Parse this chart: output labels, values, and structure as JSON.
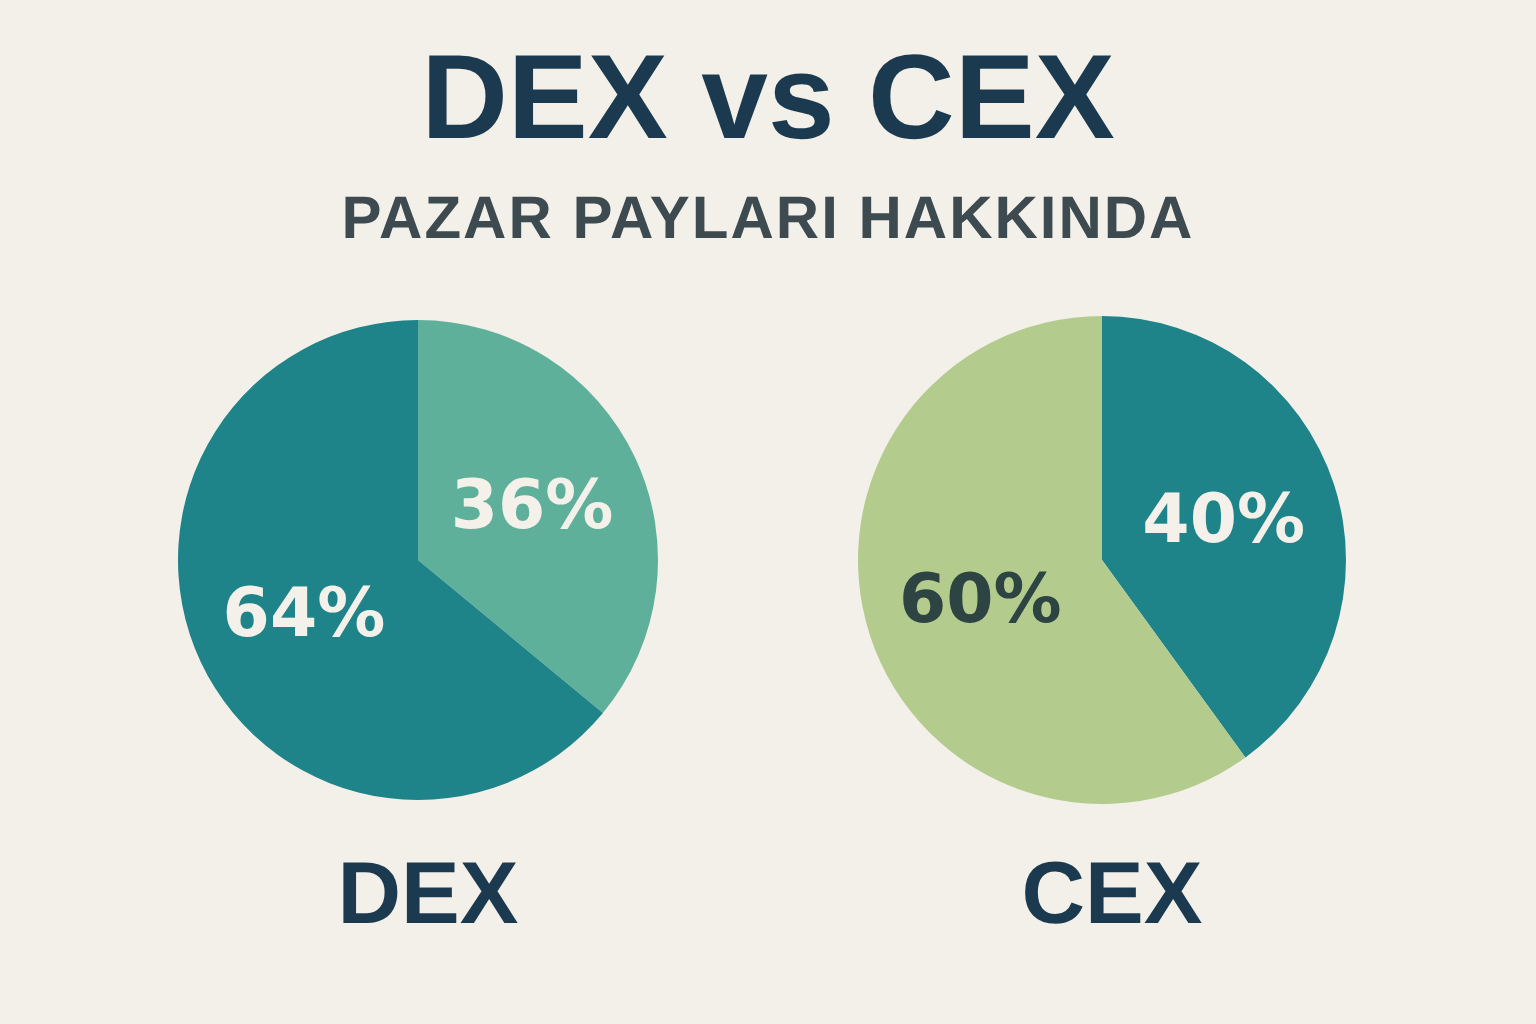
{
  "chart_data": [
    {
      "type": "pie",
      "title": "DEX vs CEX",
      "subtitle": "PAZAR PAYLARI HAKKINDA",
      "xlabel": "DEX",
      "categories": [
        null,
        null
      ],
      "values": [
        36,
        64
      ],
      "colors": [
        "#5fb09a",
        "#1e8489"
      ],
      "value_labels": [
        "36%",
        "64%"
      ]
    },
    {
      "type": "pie",
      "xlabel": "CEX",
      "categories": [
        null,
        null
      ],
      "values": [
        40,
        60
      ],
      "colors": [
        "#1e8489",
        "#b3cc8e"
      ],
      "value_labels": [
        "40%",
        "60%"
      ]
    }
  ]
}
